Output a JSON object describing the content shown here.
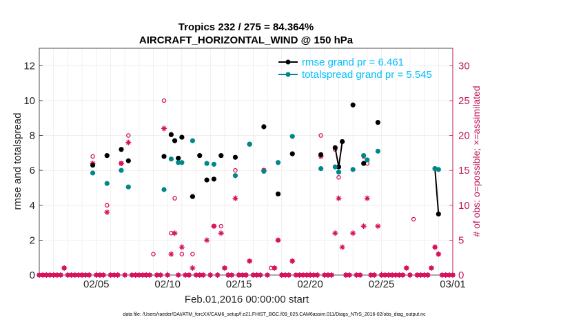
{
  "chart_data": {
    "type": "scatter",
    "title": "Tropics 232 / 275 = 84.364%",
    "subtitle": "AIRCRAFT_HORIZONTAL_WIND @ 150 hPa",
    "xlabel": "Feb.01,2016 00:00:00 start",
    "ylabel": "rmse and totalspread",
    "ylabel_right": "# of obs: o=possible; ×=assimilated",
    "footnote": "data file: /Users/raeder/DAI/ATM_forcXX/CAM6_setup/f.e21.FHIST_BGC.f09_025.CAM6assim.011/Diags_NTrS_2016-02/obs_diag_output.nc",
    "xlim": [
      1.0,
      30.0
    ],
    "ylim": [
      0,
      13
    ],
    "ylim_right": [
      0,
      32.5
    ],
    "grid": true,
    "legend_position": "top-right",
    "x_ticks": [
      5,
      10,
      15,
      20,
      25,
      30
    ],
    "x_tick_labels": [
      "02/05",
      "02/10",
      "02/15",
      "02/20",
      "02/25",
      "03/01"
    ],
    "y_ticks": [
      0,
      2,
      4,
      6,
      8,
      10,
      12
    ],
    "y_ticks_right": [
      0,
      5,
      10,
      15,
      20,
      25,
      30
    ],
    "colors": {
      "rmse": "#000000",
      "spread": "#00878a",
      "obs": "#d6105c",
      "legend_text": "#00bfff",
      "right_axis": "#c2185b"
    },
    "series": [
      {
        "name": "rmse grand pr = 6.461",
        "color": "#000000",
        "points": [
          [
            4.75,
            6.3
          ],
          [
            5.75,
            6.85
          ],
          [
            6.75,
            7.2
          ],
          [
            7.25,
            6.55
          ],
          [
            9.75,
            6.8
          ],
          [
            10.25,
            8.05
          ],
          [
            10.5,
            7.7
          ],
          [
            10.75,
            6.7
          ],
          [
            11.0,
            7.9
          ],
          [
            11.75,
            4.5
          ],
          [
            12.25,
            6.85
          ],
          [
            12.75,
            5.45
          ],
          [
            13.25,
            5.5
          ],
          [
            13.75,
            6.85
          ],
          [
            14.75,
            6.75
          ],
          [
            15.75,
            7.5
          ],
          [
            16.75,
            8.5
          ],
          [
            17.75,
            4.65
          ],
          [
            18.75,
            6.95
          ],
          [
            20.75,
            6.9
          ],
          [
            21.75,
            7.3
          ],
          [
            22.0,
            6.2
          ],
          [
            22.25,
            7.65
          ],
          [
            23.0,
            9.75
          ],
          [
            23.75,
            6.4
          ],
          [
            24.75,
            8.75
          ],
          [
            28.75,
            6.1
          ],
          [
            29.0,
            3.5
          ]
        ],
        "segments": [
          [
            [
              21.75,
              7.3
            ],
            [
              22.0,
              6.2
            ],
            [
              22.25,
              7.65
            ]
          ],
          [
            [
              28.75,
              6.1
            ],
            [
              29.0,
              3.5
            ]
          ]
        ]
      },
      {
        "name": "totalspread grand pr = 5.545",
        "color": "#00878a",
        "points": [
          [
            4.75,
            5.85
          ],
          [
            5.75,
            5.25
          ],
          [
            6.75,
            6.0
          ],
          [
            7.25,
            5.05
          ],
          [
            9.75,
            4.9
          ],
          [
            10.25,
            6.65
          ],
          [
            10.75,
            6.45
          ],
          [
            11.0,
            6.45
          ],
          [
            11.75,
            7.7
          ],
          [
            12.75,
            6.4
          ],
          [
            13.25,
            6.35
          ],
          [
            14.75,
            5.7
          ],
          [
            15.75,
            7.5
          ],
          [
            16.75,
            5.95
          ],
          [
            17.75,
            6.45
          ],
          [
            18.75,
            7.95
          ],
          [
            20.75,
            6.1
          ],
          [
            21.75,
            6.2
          ],
          [
            22.0,
            5.9
          ],
          [
            23.0,
            6.05
          ],
          [
            23.75,
            6.85
          ],
          [
            24.0,
            6.6
          ],
          [
            24.75,
            7.1
          ],
          [
            28.75,
            6.1
          ],
          [
            29.0,
            6.05
          ]
        ],
        "segments": [
          [
            [
              28.75,
              6.1
            ],
            [
              29.0,
              6.05
            ]
          ]
        ]
      }
    ],
    "obs_possible": [
      [
        4.75,
        17
      ],
      [
        5.75,
        10
      ],
      [
        6.75,
        16
      ],
      [
        7.25,
        20
      ],
      [
        9.0,
        3
      ],
      [
        9.75,
        25
      ],
      [
        10.25,
        6
      ],
      [
        10.5,
        11
      ],
      [
        11.0,
        3
      ],
      [
        11.75,
        3
      ],
      [
        13.25,
        7
      ],
      [
        13.75,
        7
      ],
      [
        14.75,
        15
      ],
      [
        15.75,
        2
      ],
      [
        16.75,
        15
      ],
      [
        17.25,
        1
      ],
      [
        17.75,
        5
      ],
      [
        20.75,
        20
      ],
      [
        21.75,
        18
      ],
      [
        22.0,
        14
      ],
      [
        23.75,
        17
      ],
      [
        24.0,
        16
      ],
      [
        27.25,
        8
      ],
      [
        28.75,
        4
      ],
      [
        29.0,
        3
      ]
    ],
    "obs_assimilated": [
      [
        4.75,
        16
      ],
      [
        5.75,
        9
      ],
      [
        6.75,
        16
      ],
      [
        7.25,
        19
      ],
      [
        9.75,
        21
      ],
      [
        10.25,
        3
      ],
      [
        10.5,
        6
      ],
      [
        11.0,
        4
      ],
      [
        11.75,
        1
      ],
      [
        12.75,
        5
      ],
      [
        13.25,
        7
      ],
      [
        13.75,
        6
      ],
      [
        14.75,
        11
      ],
      [
        15.75,
        2
      ],
      [
        16.75,
        15
      ],
      [
        17.75,
        5
      ],
      [
        20.75,
        17
      ],
      [
        21.75,
        6
      ],
      [
        22.0,
        11
      ],
      [
        22.25,
        4
      ],
      [
        23.0,
        6
      ],
      [
        23.75,
        7
      ],
      [
        24.0,
        11
      ],
      [
        24.75,
        7
      ],
      [
        28.75,
        4
      ],
      [
        29.0,
        3
      ]
    ],
    "obs_zero_days_start": 1.0,
    "obs_zero_days_end": 30.0,
    "obs_zero_step": 0.25,
    "obs_zero_bumps": [
      [
        2.75,
        1
      ],
      [
        14.0,
        1
      ],
      [
        17.5,
        1
      ],
      [
        18.75,
        2
      ],
      [
        26.75,
        1
      ],
      [
        28.5,
        1
      ]
    ]
  }
}
